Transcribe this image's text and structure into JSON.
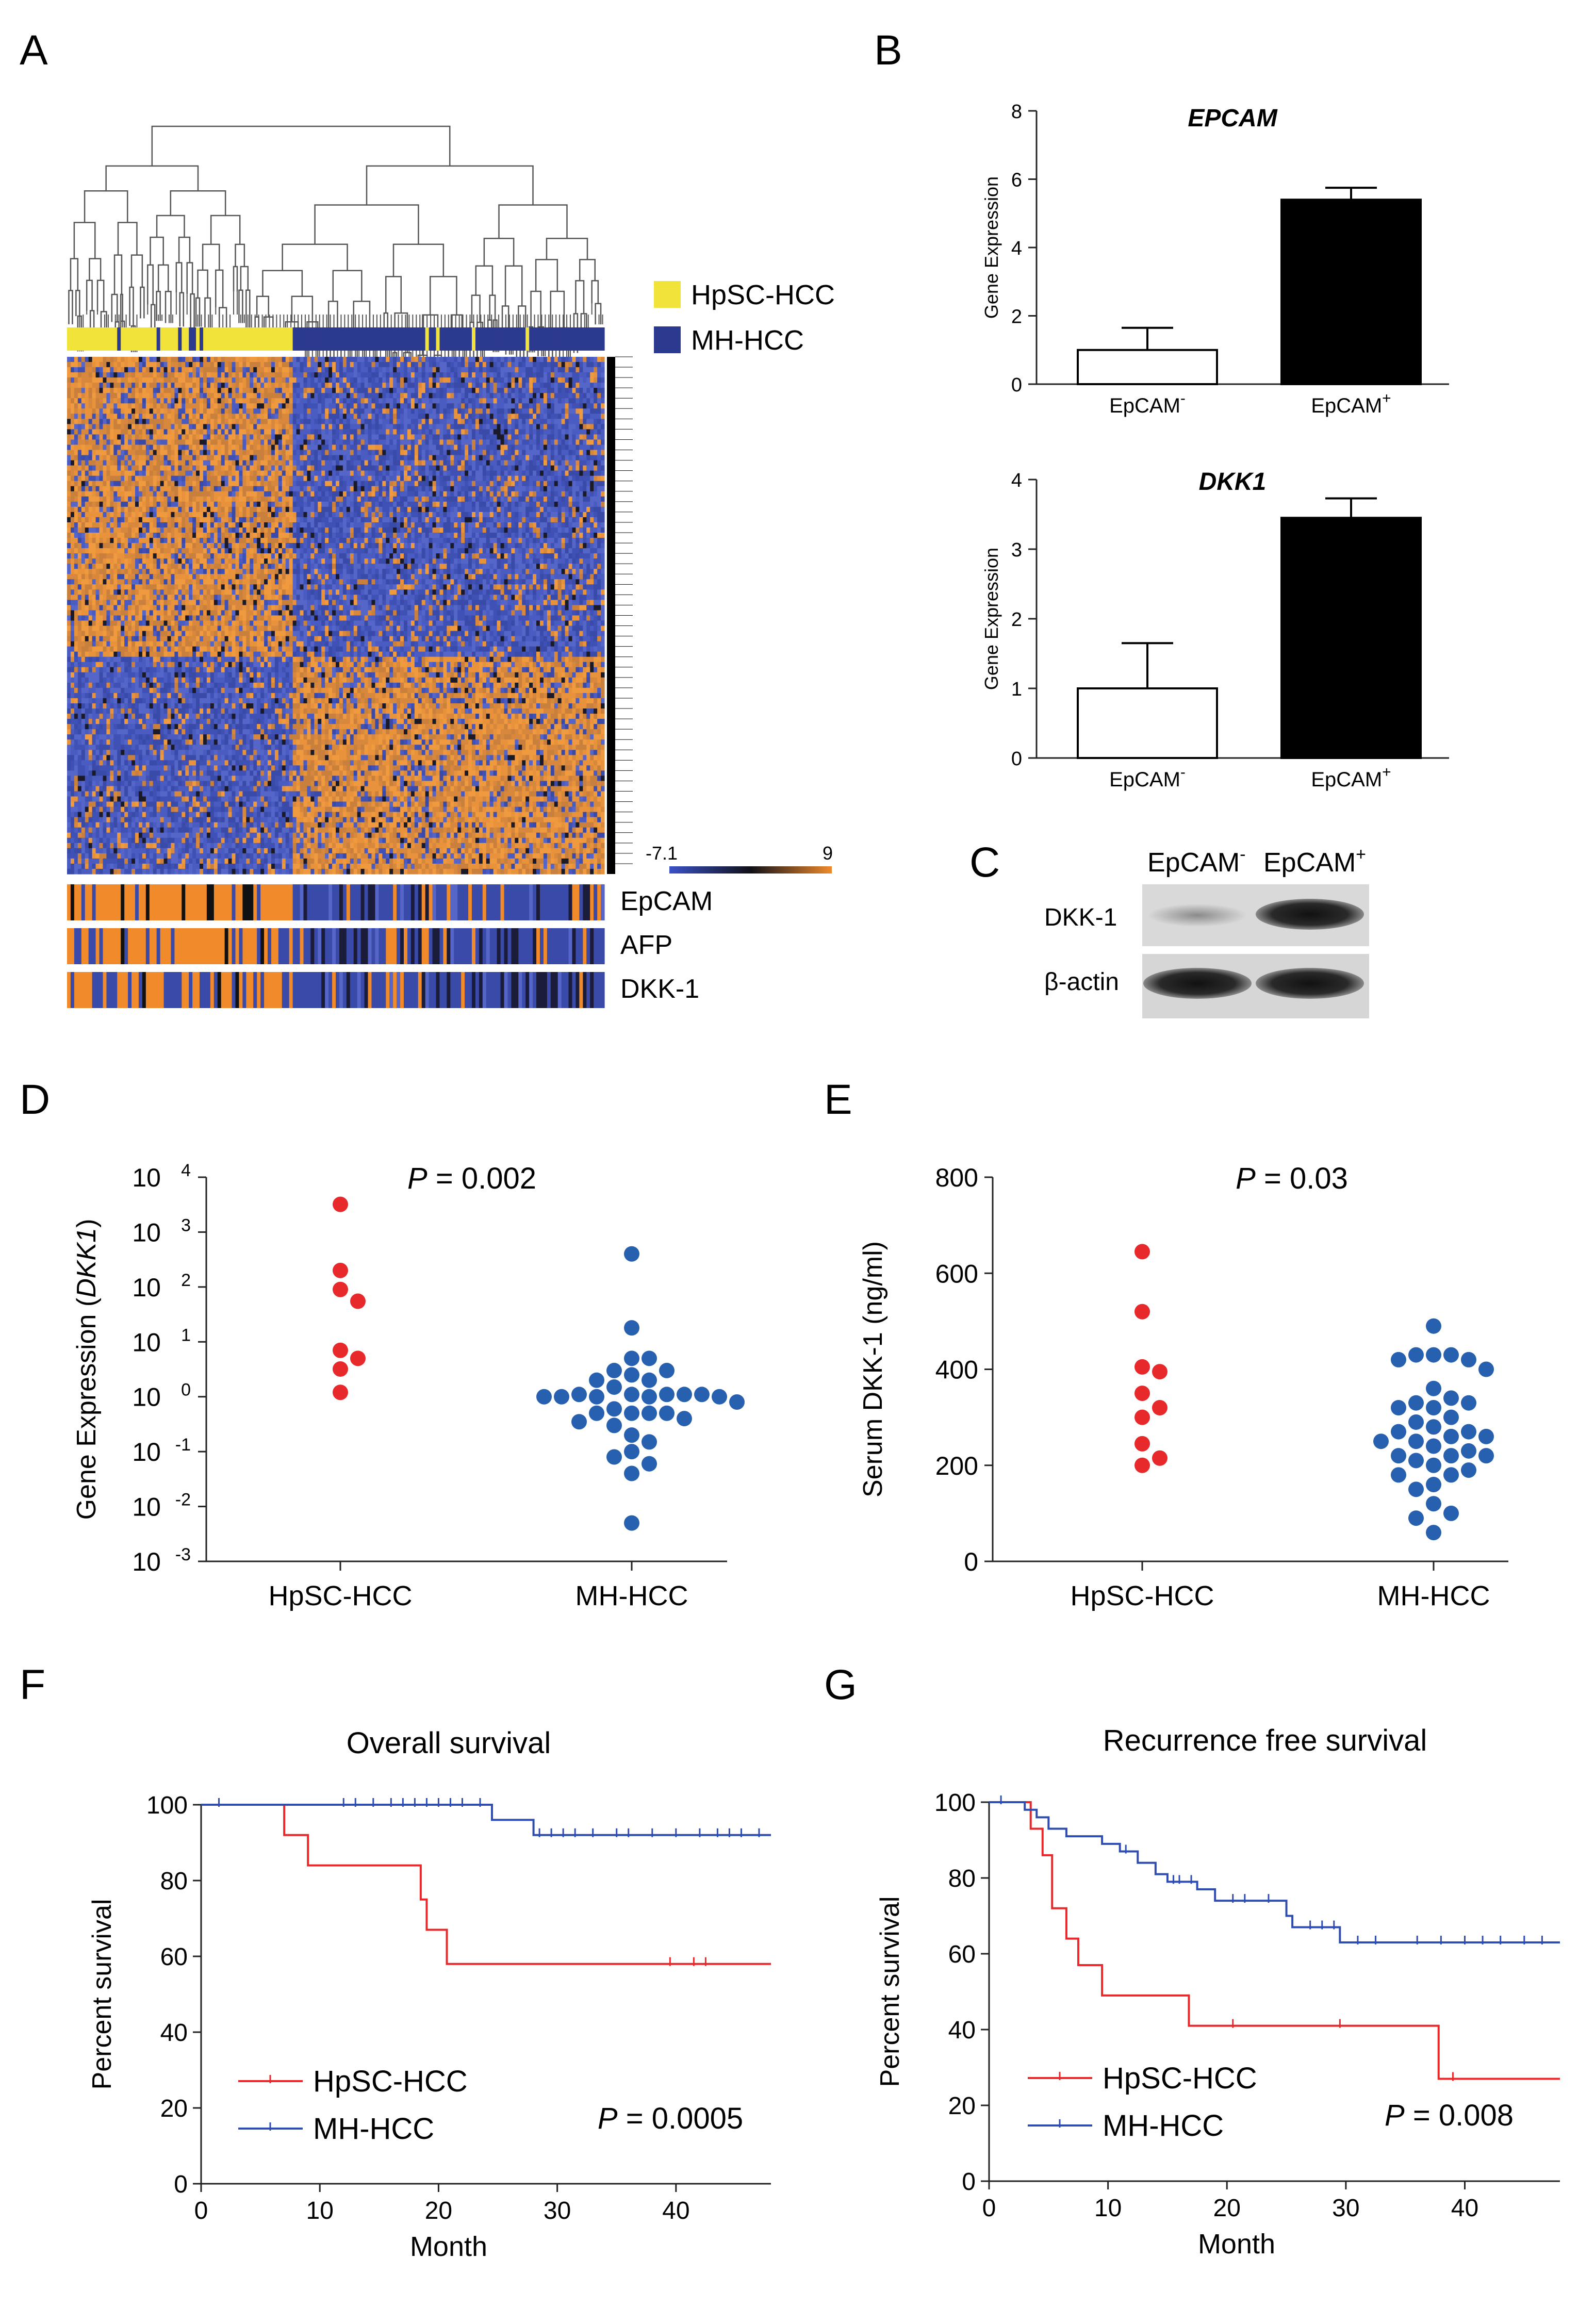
{
  "panels": {
    "A": {
      "letter": "A",
      "legend": [
        {
          "label": "HpSC-HCC",
          "color": "#f2e33a"
        },
        {
          "label": "MH-HCC",
          "color": "#2b3a8f"
        }
      ],
      "colorbar": {
        "min_label": "-7.1",
        "max_label": "9"
      },
      "tracks": [
        "EpCAM",
        "AFP",
        "DKK-1"
      ]
    },
    "B": {
      "letter": "B",
      "charts": [
        {
          "type": "bar",
          "title": "EPCAM",
          "ylabel": "Gene Expression",
          "ylim": [
            0,
            8
          ],
          "yticks": [
            "0",
            "2",
            "4",
            "6",
            "8"
          ],
          "categories": [
            {
              "base": "EpCAM",
              "sup": "-"
            },
            {
              "base": "EpCAM",
              "sup": "+"
            }
          ],
          "values": [
            1.0,
            5.4
          ],
          "errors": [
            0.65,
            0.35
          ],
          "fills": [
            "#ffffff",
            "#000000"
          ]
        },
        {
          "type": "bar",
          "title": "DKK1",
          "ylabel": "Gene Expression",
          "ylim": [
            0,
            4
          ],
          "yticks": [
            "0",
            "1",
            "2",
            "3",
            "4"
          ],
          "categories": [
            {
              "base": "EpCAM",
              "sup": "-"
            },
            {
              "base": "EpCAM",
              "sup": "+"
            }
          ],
          "values": [
            1.0,
            3.45
          ],
          "errors": [
            0.65,
            0.28
          ],
          "fills": [
            "#ffffff",
            "#000000"
          ]
        }
      ]
    },
    "C": {
      "letter": "C",
      "columns": [
        {
          "base": "EpCAM",
          "sup": "-"
        },
        {
          "base": "EpCAM",
          "sup": "+"
        }
      ],
      "rows": [
        "DKK-1",
        "β-actin"
      ]
    },
    "D": {
      "letter": "D",
      "chart": {
        "type": "scatter",
        "ylabel_pre": "Gene Expression (",
        "ylabel_italic": "DKK1",
        "ylabel_post": ")",
        "yscale": "log",
        "ylim_exp": [
          -3,
          4
        ],
        "ytick_base": "10",
        "ytick_exps": [
          "-3",
          "-2",
          "-1",
          "0",
          "1",
          "2",
          "3",
          "4"
        ],
        "pvalue_label": "P",
        "pvalue_text": " = 0.002",
        "groups": [
          {
            "name": "HpSC-HCC",
            "color": "#e8292c",
            "values": [
              3200,
              200,
              55,
              90,
              7,
              5,
              3.2,
              1.2
            ]
          },
          {
            "name": "MH-HCC",
            "color": "#2860b0",
            "values": [
              400,
              18,
              5,
              5,
              3,
              2.5,
              3,
              2,
              2,
              1.5,
              1.1,
              1.1,
              1.1,
              1.1,
              1.1,
              1.0,
              1.0,
              1.0,
              1.0,
              1.0,
              0.8,
              0.6,
              0.5,
              0.5,
              0.5,
              0.5,
              0.4,
              0.35,
              0.3,
              0.2,
              0.15,
              0.1,
              0.08,
              0.06,
              0.04,
              0.005
            ]
          }
        ]
      }
    },
    "E": {
      "letter": "E",
      "chart": {
        "type": "scatter",
        "ylabel": "Serum DKK-1 (ng/ml)",
        "ylim": [
          0,
          800
        ],
        "yticks": [
          "0",
          "200",
          "400",
          "600",
          "800"
        ],
        "pvalue_label": "P",
        "pvalue_text": " = 0.03",
        "groups": [
          {
            "name": "HpSC-HCC",
            "color": "#e8292c",
            "values": [
              645,
              520,
              405,
              395,
              350,
              320,
              300,
              245,
              215,
              200
            ]
          },
          {
            "name": "MH-HCC",
            "color": "#2860b0",
            "values": [
              490,
              430,
              430,
              430,
              420,
              420,
              400,
              360,
              340,
              330,
              330,
              320,
              320,
              300,
              290,
              280,
              270,
              270,
              260,
              260,
              250,
              250,
              240,
              230,
              220,
              220,
              220,
              210,
              200,
              190,
              180,
              180,
              160,
              150,
              120,
              100,
              90,
              60
            ]
          }
        ]
      }
    },
    "F": {
      "letter": "F",
      "chart": {
        "type": "line",
        "title": "Overall survival",
        "xlabel": "Month",
        "ylabel": "Percent survival",
        "xlim": [
          0,
          48
        ],
        "ylim": [
          0,
          100
        ],
        "xticks": [
          "0",
          "10",
          "20",
          "30",
          "40"
        ],
        "yticks": [
          "0",
          "20",
          "40",
          "60",
          "80",
          "100"
        ],
        "pvalue_label": "P",
        "pvalue_text": " = 0.0005",
        "series": [
          {
            "name": "HpSC-HCC",
            "color": "#e8292c",
            "steps": [
              [
                0,
                100
              ],
              [
                7,
                92
              ],
              [
                9,
                84
              ],
              [
                18.5,
                75
              ],
              [
                19,
                67
              ],
              [
                20.7,
                58
              ],
              [
                48,
                58
              ]
            ],
            "censors": [
              [
                39.5,
                58
              ],
              [
                41.5,
                58
              ],
              [
                42.5,
                58
              ]
            ]
          },
          {
            "name": "MH-HCC",
            "color": "#2f4db0",
            "steps": [
              [
                0,
                100
              ],
              [
                24.5,
                96
              ],
              [
                28,
                92
              ],
              [
                48,
                92
              ]
            ],
            "censors": [
              [
                1.5,
                100
              ],
              [
                12,
                100
              ],
              [
                13,
                100
              ],
              [
                14.5,
                100
              ],
              [
                16,
                100
              ],
              [
                17,
                100
              ],
              [
                18,
                100
              ],
              [
                19,
                100
              ],
              [
                20,
                100
              ],
              [
                21,
                100
              ],
              [
                22,
                100
              ],
              [
                23.5,
                100
              ],
              [
                28.5,
                92
              ],
              [
                29.5,
                92
              ],
              [
                30.5,
                92
              ],
              [
                31.5,
                92
              ],
              [
                33,
                92
              ],
              [
                35,
                92
              ],
              [
                36,
                92
              ],
              [
                38,
                92
              ],
              [
                40,
                92
              ],
              [
                42,
                92
              ],
              [
                43.5,
                92
              ],
              [
                44.5,
                92
              ],
              [
                45.5,
                92
              ],
              [
                47,
                92
              ]
            ]
          }
        ]
      }
    },
    "G": {
      "letter": "G",
      "chart": {
        "type": "line",
        "title": "Recurrence free survival",
        "xlabel": "Month",
        "ylabel": "Percent survival",
        "xlim": [
          0,
          48
        ],
        "ylim": [
          0,
          100
        ],
        "xticks": [
          "0",
          "10",
          "20",
          "30",
          "40"
        ],
        "yticks": [
          "0",
          "20",
          "40",
          "60",
          "80",
          "100"
        ],
        "pvalue_label": "P",
        "pvalue_text": " = 0.008",
        "series": [
          {
            "name": "HpSC-HCC",
            "color": "#e8292c",
            "steps": [
              [
                0,
                100
              ],
              [
                3.5,
                93
              ],
              [
                4.5,
                86
              ],
              [
                5.3,
                72
              ],
              [
                6.5,
                64
              ],
              [
                7.5,
                57
              ],
              [
                9.5,
                49
              ],
              [
                16.8,
                41
              ],
              [
                37.8,
                27
              ],
              [
                48,
                27
              ]
            ],
            "censors": [
              [
                20.5,
                41
              ],
              [
                29.5,
                41
              ],
              [
                39,
                27
              ]
            ]
          },
          {
            "name": "MH-HCC",
            "color": "#2f4db0",
            "steps": [
              [
                0,
                100
              ],
              [
                3,
                98
              ],
              [
                4,
                96
              ],
              [
                5,
                93
              ],
              [
                6.5,
                91
              ],
              [
                9.5,
                89
              ],
              [
                11,
                87
              ],
              [
                12.5,
                84
              ],
              [
                14,
                81
              ],
              [
                15,
                79
              ],
              [
                17.5,
                77
              ],
              [
                19,
                74
              ],
              [
                25,
                70
              ],
              [
                25.5,
                67
              ],
              [
                29.5,
                63
              ],
              [
                48,
                63
              ]
            ],
            "censors": [
              [
                1,
                100
              ],
              [
                11.5,
                87
              ],
              [
                15.5,
                79
              ],
              [
                16,
                79
              ],
              [
                17,
                79
              ],
              [
                20.5,
                74
              ],
              [
                21.5,
                74
              ],
              [
                23.5,
                74
              ],
              [
                27,
                67
              ],
              [
                28,
                67
              ],
              [
                29,
                67
              ],
              [
                31,
                63
              ],
              [
                32.5,
                63
              ],
              [
                36,
                63
              ],
              [
                38,
                63
              ],
              [
                40,
                63
              ],
              [
                41.5,
                63
              ],
              [
                43,
                63
              ],
              [
                45,
                63
              ],
              [
                46.5,
                63
              ]
            ]
          }
        ]
      }
    }
  }
}
